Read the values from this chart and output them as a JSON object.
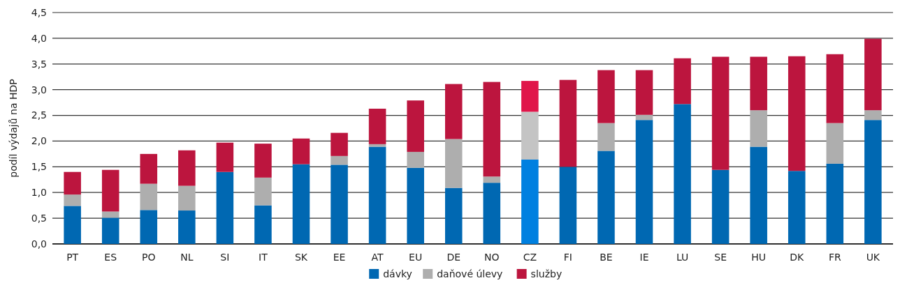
{
  "chart_data": {
    "type": "bar",
    "stacked": true,
    "ylabel": "podíl výdajů na HDP",
    "categories": [
      "PT",
      "ES",
      "PO",
      "NL",
      "SI",
      "IT",
      "SK",
      "EE",
      "AT",
      "EU",
      "DE",
      "NO",
      "CZ",
      "FI",
      "BE",
      "IE",
      "LU",
      "SE",
      "HU",
      "DK",
      "FR",
      "UK"
    ],
    "series": [
      {
        "name": "dávky",
        "color": "#0068b2",
        "colors": [
          "#0068b2",
          "#0068b2",
          "#0068b2",
          "#0068b2",
          "#0068b2",
          "#0068b2",
          "#0068b2",
          "#0068b2",
          "#0068b2",
          "#0068b2",
          "#0068b2",
          "#0068b2",
          "#0080e0",
          "#0068b2",
          "#0068b2",
          "#0068b2",
          "#0068b2",
          "#0068b2",
          "#0068b2",
          "#0068b2",
          "#0068b2",
          "#0068b2"
        ],
        "values": [
          0.74,
          0.51,
          0.66,
          0.65,
          1.4,
          0.75,
          1.55,
          1.54,
          1.89,
          1.48,
          1.09,
          1.19,
          1.64,
          1.5,
          1.81,
          2.41,
          2.72,
          1.44,
          1.89,
          1.42,
          1.56,
          2.41
        ]
      },
      {
        "name": "daňové úlevy",
        "color": "#aeaeae",
        "colors": [
          "#aeaeae",
          "#aeaeae",
          "#aeaeae",
          "#aeaeae",
          "#aeaeae",
          "#aeaeae",
          "#aeaeae",
          "#aeaeae",
          "#aeaeae",
          "#aeaeae",
          "#aeaeae",
          "#aeaeae",
          "#c4c4c4",
          "#aeaeae",
          "#aeaeae",
          "#aeaeae",
          "#aeaeae",
          "#aeaeae",
          "#aeaeae",
          "#aeaeae",
          "#aeaeae",
          "#aeaeae"
        ],
        "values": [
          0.22,
          0.12,
          0.51,
          0.48,
          0,
          0.54,
          0,
          0.17,
          0.05,
          0.31,
          0.95,
          0.12,
          0.93,
          0,
          0.54,
          0.1,
          0,
          0,
          0.71,
          0,
          0.79,
          0.19
        ]
      },
      {
        "name": "služby",
        "color": "#bc153e",
        "colors": [
          "#bc153e",
          "#bc153e",
          "#bc153e",
          "#bc153e",
          "#bc153e",
          "#bc153e",
          "#bc153e",
          "#bc153e",
          "#bc153e",
          "#bc153e",
          "#bc153e",
          "#bc153e",
          "#e0164a",
          "#bc153e",
          "#bc153e",
          "#bc153e",
          "#bc153e",
          "#bc153e",
          "#bc153e",
          "#bc153e",
          "#bc153e",
          "#bc153e"
        ],
        "values": [
          0.44,
          0.81,
          0.58,
          0.69,
          0.57,
          0.66,
          0.5,
          0.45,
          0.69,
          1.0,
          1.07,
          1.84,
          0.6,
          1.69,
          1.03,
          0.87,
          0.89,
          2.2,
          1.04,
          2.23,
          1.34,
          1.39
        ]
      }
    ],
    "ylim": [
      0,
      4.5
    ],
    "yticks": [
      {
        "value": 0,
        "label": "0,0"
      },
      {
        "value": 0.5,
        "label": "0,5"
      },
      {
        "value": 1,
        "label": "1,0"
      },
      {
        "value": 1.5,
        "label": "1,5"
      },
      {
        "value": 2,
        "label": "2,0"
      },
      {
        "value": 2.5,
        "label": "2,5"
      },
      {
        "value": 3,
        "label": "3,0"
      },
      {
        "value": 3.5,
        "label": "3,5"
      },
      {
        "value": 4,
        "label": "4,0"
      },
      {
        "value": 4.5,
        "label": "4,5"
      }
    ],
    "grid": "y",
    "legend": "bottom"
  }
}
